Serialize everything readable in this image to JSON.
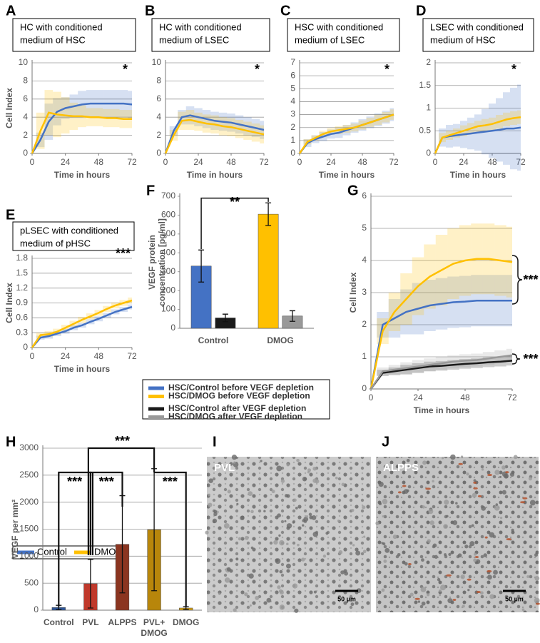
{
  "chart_data": [
    {
      "panel": "A",
      "type": "line",
      "title": [
        "HC with conditioned",
        "medium of HSC"
      ],
      "xlabel": "Time in hours",
      "ylabel": "Cell Index",
      "x": [
        0,
        6,
        12,
        18,
        24,
        30,
        36,
        42,
        48,
        54,
        60,
        66,
        72
      ],
      "xlim": [
        0,
        72
      ],
      "xticks": [
        0,
        24,
        48,
        72
      ],
      "ylim": [
        0,
        10
      ],
      "yticks": [
        0,
        2,
        4,
        6,
        8,
        10
      ],
      "grid": true,
      "annotations": [
        "*"
      ],
      "series": [
        {
          "color": "#4472c4",
          "values": [
            0,
            1.5,
            3.5,
            4.6,
            5.0,
            5.2,
            5.4,
            5.5,
            5.5,
            5.5,
            5.5,
            5.5,
            5.4
          ],
          "errors": [
            0,
            0.8,
            2,
            1.5,
            1.2,
            1.3,
            1.5,
            1.5,
            1.5,
            1.5,
            1.5,
            1.5,
            1.5
          ]
        },
        {
          "color": "#ffc000",
          "values": [
            0,
            2.5,
            4.5,
            4.3,
            4.2,
            4.1,
            4.1,
            4.0,
            4.0,
            3.9,
            3.9,
            3.8,
            3.8
          ],
          "errors": [
            0,
            2,
            2.5,
            2.5,
            2,
            1.5,
            1.2,
            1,
            1,
            1,
            1,
            1,
            1
          ]
        }
      ]
    },
    {
      "panel": "B",
      "type": "line",
      "title": [
        "HC with conditioned",
        "medium of LSEC"
      ],
      "xlabel": "Time in hours",
      "x": [
        0,
        6,
        12,
        18,
        24,
        30,
        36,
        42,
        48,
        54,
        60,
        66,
        72
      ],
      "xlim": [
        0,
        72
      ],
      "xticks": [
        0,
        24,
        48,
        72
      ],
      "ylim": [
        0,
        10
      ],
      "yticks": [
        0,
        2,
        4,
        6,
        8,
        10
      ],
      "grid": true,
      "annotations": [
        "*"
      ],
      "series": [
        {
          "color": "#4472c4",
          "values": [
            0,
            2.5,
            4.0,
            4.2,
            4.0,
            3.8,
            3.6,
            3.5,
            3.4,
            3.2,
            3.0,
            2.8,
            2.6
          ],
          "errors": [
            0,
            0.5,
            0.8,
            1,
            1,
            1,
            1,
            1,
            1,
            1,
            1,
            1,
            1
          ]
        },
        {
          "color": "#ffc000",
          "values": [
            0,
            2.0,
            3.6,
            3.7,
            3.5,
            3.3,
            3.2,
            3.0,
            2.9,
            2.7,
            2.5,
            2.3,
            2.1
          ],
          "errors": [
            0,
            0.6,
            1,
            1.1,
            1,
            1,
            1,
            1,
            1,
            1,
            1,
            1,
            1
          ]
        }
      ]
    },
    {
      "panel": "C",
      "type": "line",
      "title": [
        "HSC with conditioned",
        "medium of LSEC"
      ],
      "xlabel": "Time in hours",
      "x": [
        0,
        6,
        12,
        18,
        24,
        30,
        36,
        42,
        48,
        54,
        60,
        66,
        72
      ],
      "xlim": [
        0,
        72
      ],
      "xticks": [
        0,
        24,
        48,
        72
      ],
      "ylim": [
        0,
        7
      ],
      "yticks": [
        0,
        1,
        2,
        3,
        4,
        5,
        6,
        7
      ],
      "grid": true,
      "annotations": [
        "*"
      ],
      "series": [
        {
          "color": "#4472c4",
          "values": [
            0,
            0.8,
            1.1,
            1.3,
            1.5,
            1.6,
            1.8,
            2.0,
            2.2,
            2.4,
            2.6,
            2.8,
            3.0
          ],
          "errors": [
            0,
            0.3,
            0.3,
            0.35,
            0.35,
            0.4,
            0.4,
            0.4,
            0.45,
            0.45,
            0.5,
            0.5,
            0.5
          ]
        },
        {
          "color": "#ffc000",
          "values": [
            0,
            0.9,
            1.2,
            1.5,
            1.7,
            1.8,
            1.9,
            2.0,
            2.2,
            2.4,
            2.6,
            2.8,
            3.0
          ],
          "errors": [
            0,
            0.2,
            0.2,
            0.25,
            0.25,
            0.3,
            0.3,
            0.3,
            0.35,
            0.35,
            0.4,
            0.4,
            0.4
          ]
        }
      ]
    },
    {
      "panel": "D",
      "type": "line",
      "title": [
        "LSEC with conditioned",
        "medium of HSC"
      ],
      "xlabel": "Time in hours",
      "x": [
        0,
        6,
        12,
        18,
        24,
        30,
        36,
        42,
        48,
        54,
        60,
        66,
        72
      ],
      "xlim": [
        0,
        72
      ],
      "xticks": [
        0,
        24,
        48,
        72
      ],
      "ylim": [
        0,
        2
      ],
      "yticks": [
        0,
        0.5,
        1,
        1.5,
        2
      ],
      "grid": true,
      "annotations": [
        "*"
      ],
      "series": [
        {
          "color": "#4472c4",
          "values": [
            0,
            0.35,
            0.38,
            0.4,
            0.42,
            0.44,
            0.46,
            0.48,
            0.5,
            0.52,
            0.55,
            0.55,
            0.57
          ],
          "errors": [
            0,
            0.2,
            0.25,
            0.25,
            0.3,
            0.35,
            0.4,
            0.5,
            0.6,
            0.7,
            0.8,
            0.9,
            0.95
          ]
        },
        {
          "color": "#ffc000",
          "values": [
            0,
            0.35,
            0.4,
            0.45,
            0.5,
            0.55,
            0.6,
            0.62,
            0.65,
            0.7,
            0.75,
            0.78,
            0.8
          ],
          "errors": [
            0,
            0.1,
            0.1,
            0.1,
            0.12,
            0.12,
            0.12,
            0.14,
            0.14,
            0.15,
            0.15,
            0.15,
            0.15
          ]
        }
      ]
    },
    {
      "panel": "E",
      "type": "line",
      "title": [
        "pLSEC with conditioned",
        "medium of pHSC"
      ],
      "xlabel": "Time in hours",
      "ylabel": "Cell Index",
      "x": [
        0,
        6,
        12,
        18,
        24,
        30,
        36,
        42,
        48,
        54,
        60,
        66,
        72
      ],
      "xlim": [
        0,
        72
      ],
      "xticks": [
        0,
        24,
        48,
        72
      ],
      "ylim": [
        0,
        1.8
      ],
      "yticks": [
        0,
        0.3,
        0.6,
        0.9,
        1.2,
        1.5,
        1.8
      ],
      "grid": true,
      "annotations": [
        "***"
      ],
      "legend": "bottom",
      "series": [
        {
          "name": "Control",
          "color": "#4472c4",
          "values": [
            0,
            0.2,
            0.23,
            0.28,
            0.33,
            0.4,
            0.45,
            0.52,
            0.58,
            0.65,
            0.72,
            0.77,
            0.82
          ],
          "errors": [
            0,
            0.04,
            0.05,
            0.05,
            0.05,
            0.05,
            0.05,
            0.05,
            0.05,
            0.05,
            0.05,
            0.05,
            0.05
          ]
        },
        {
          "name": "DMOG",
          "color": "#ffc000",
          "values": [
            0,
            0.25,
            0.27,
            0.32,
            0.4,
            0.48,
            0.56,
            0.63,
            0.7,
            0.78,
            0.85,
            0.9,
            0.95
          ],
          "errors": [
            0,
            0.05,
            0.06,
            0.06,
            0.06,
            0.06,
            0.06,
            0.06,
            0.06,
            0.06,
            0.06,
            0.06,
            0.06
          ]
        }
      ]
    },
    {
      "panel": "F",
      "type": "bar",
      "ylabel": [
        "VEGF protein",
        "concentration [pg/ml]"
      ],
      "categories": [
        "Control",
        "DMOG"
      ],
      "ylim": [
        0,
        700
      ],
      "yticks": [
        0,
        100,
        200,
        300,
        400,
        500,
        600,
        700
      ],
      "grid": false,
      "annotations": [
        "**"
      ],
      "series": [
        {
          "colors": [
            "#4472c4",
            "#ffc000"
          ],
          "values": [
            330,
            605
          ],
          "errors": [
            85,
            60
          ]
        },
        {
          "colors": [
            "#1a1a1a",
            "#999999"
          ],
          "values": [
            55,
            65
          ],
          "errors": [
            20,
            28
          ]
        }
      ]
    },
    {
      "panel": "G",
      "type": "line",
      "xlabel": "Time in hours",
      "ylabel": "Cell Index",
      "x": [
        0,
        6,
        12,
        18,
        24,
        30,
        36,
        42,
        48,
        54,
        60,
        66,
        72
      ],
      "xlim": [
        0,
        72
      ],
      "xticks": [
        0,
        24,
        48,
        72
      ],
      "ylim": [
        0,
        6
      ],
      "yticks": [
        0,
        1,
        2,
        3,
        4,
        5,
        6
      ],
      "grid": true,
      "annotations": [
        "***",
        "***"
      ],
      "legend": "box",
      "series": [
        {
          "name": "HSC/Control before VEGF depletion",
          "color": "#4472c4",
          "values": [
            0,
            2.0,
            2.2,
            2.4,
            2.5,
            2.6,
            2.65,
            2.7,
            2.72,
            2.75,
            2.75,
            2.75,
            2.75
          ],
          "errors": [
            0,
            0.4,
            0.6,
            0.7,
            0.8,
            0.8,
            0.8,
            0.8,
            0.8,
            0.8,
            0.8,
            0.8,
            0.8
          ]
        },
        {
          "name": "HSC/DMOG before VEGF depletion",
          "color": "#ffc000",
          "values": [
            0,
            1.8,
            2.4,
            2.8,
            3.2,
            3.5,
            3.7,
            3.9,
            4.0,
            4.05,
            4.05,
            4.0,
            3.95
          ],
          "errors": [
            0,
            0.4,
            0.6,
            0.8,
            0.9,
            1.0,
            1.1,
            1.1,
            1.1,
            1.1,
            1.1,
            1.1,
            1.1
          ]
        },
        {
          "name": "HSC/Control  after VEGF depletion",
          "color": "#1a1a1a",
          "values": [
            0,
            0.5,
            0.55,
            0.6,
            0.65,
            0.7,
            0.72,
            0.75,
            0.78,
            0.8,
            0.83,
            0.85,
            0.88
          ],
          "errors": [
            0,
            0.1,
            0.12,
            0.15,
            0.15,
            0.15,
            0.15,
            0.15,
            0.15,
            0.15,
            0.15,
            0.15,
            0.15
          ]
        },
        {
          "name": "HSC/DMOG after VEGF depletion",
          "color": "#999999",
          "values": [
            0,
            0.55,
            0.6,
            0.65,
            0.7,
            0.75,
            0.8,
            0.85,
            0.88,
            0.9,
            0.95,
            1.0,
            1.05
          ],
          "errors": [
            0,
            0.12,
            0.15,
            0.18,
            0.2,
            0.2,
            0.2,
            0.2,
            0.2,
            0.2,
            0.2,
            0.2,
            0.2
          ]
        }
      ]
    },
    {
      "panel": "H",
      "type": "bar",
      "ylabel": "VEGF per mm²",
      "categories": [
        "Control",
        "PVL",
        "ALPPS",
        "PVL+ DMOG",
        "DMOG"
      ],
      "ylim": [
        0,
        3000
      ],
      "yticks": [
        0,
        500,
        1000,
        1500,
        2000,
        2500,
        3000
      ],
      "grid": true,
      "annotations": [
        "***",
        "***",
        "***",
        "***"
      ],
      "series": [
        {
          "colors": [
            "#2e5597",
            "#c0392b",
            "#8b3520",
            "#b8860b",
            "#d4a017"
          ],
          "values": [
            50,
            490,
            1220,
            1490,
            40
          ],
          "errors": [
            40,
            450,
            900,
            1130,
            25
          ]
        }
      ]
    }
  ],
  "images": [
    {
      "panel": "I",
      "label": "PVL",
      "scale_bar": "50 µm"
    },
    {
      "panel": "J",
      "label": "ALPPS",
      "scale_bar": "50 µm"
    }
  ]
}
